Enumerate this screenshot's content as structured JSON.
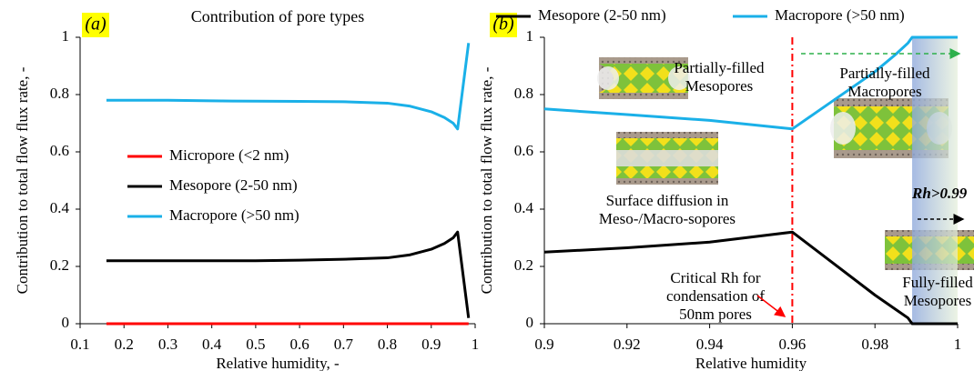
{
  "chart_data": [
    {
      "type": "line",
      "panel_label": "(a)",
      "title": "Contribution of pore types",
      "xlabel": "Relative humidity, -",
      "ylabel": "Contribution to total flow flux rate, -",
      "x": [
        0.16,
        0.2,
        0.3,
        0.4,
        0.5,
        0.6,
        0.7,
        0.8,
        0.85,
        0.9,
        0.93,
        0.95,
        0.96,
        0.985
      ],
      "series": [
        {
          "name": "Micropore (<2 nm)",
          "color": "#ff0000",
          "values": [
            0,
            0,
            0,
            0,
            0,
            0,
            0,
            0,
            0,
            0,
            0,
            0,
            0,
            0
          ]
        },
        {
          "name": "Mesopore (2-50 nm)",
          "color": "#000000",
          "values": [
            0.22,
            0.22,
            0.22,
            0.22,
            0.22,
            0.222,
            0.225,
            0.23,
            0.24,
            0.26,
            0.28,
            0.3,
            0.32,
            0.02
          ]
        },
        {
          "name": "Macropore (>50 nm)",
          "color": "#1ab0e8",
          "values": [
            0.78,
            0.78,
            0.78,
            0.778,
            0.777,
            0.776,
            0.775,
            0.77,
            0.76,
            0.74,
            0.72,
            0.7,
            0.68,
            0.98
          ]
        }
      ],
      "xlim": [
        0.1,
        1
      ],
      "ylim": [
        0,
        1
      ],
      "xticks": [
        0.1,
        0.2,
        0.3,
        0.4,
        0.5,
        0.6,
        0.7,
        0.8,
        0.9,
        1
      ],
      "yticks": [
        0,
        0.2,
        0.4,
        0.6,
        0.8,
        1
      ],
      "legend": "center-left"
    },
    {
      "type": "line",
      "panel_label": "(b)",
      "xlabel": "Relative humidity",
      "ylabel": "Contribution to total flow flux rate, -",
      "x": [
        0.9,
        0.92,
        0.94,
        0.96,
        0.97,
        0.98,
        0.985,
        0.988,
        0.989,
        0.992,
        0.994,
        0.996,
        0.998,
        1
      ],
      "series": [
        {
          "name": "Mesopore (2-50 nm)",
          "color": "#000000",
          "values": [
            0.25,
            0.265,
            0.285,
            0.32,
            0.21,
            0.1,
            0.05,
            0.02,
            0,
            0,
            0,
            0,
            0,
            0
          ]
        },
        {
          "name": "Macropore (>50 nm)",
          "color": "#1ab0e8",
          "values": [
            0.75,
            0.73,
            0.71,
            0.68,
            0.78,
            0.88,
            0.94,
            0.98,
            1,
            1,
            1,
            1,
            1,
            1
          ]
        }
      ],
      "xlim": [
        0.9,
        1
      ],
      "ylim": [
        0,
        1
      ],
      "xticks": [
        0.9,
        0.92,
        0.94,
        0.96,
        0.98,
        1
      ],
      "yticks": [
        0,
        0.2,
        0.4,
        0.6,
        0.8,
        1
      ],
      "legend": "top",
      "vline": 0.96,
      "shade": [
        0.989,
        1
      ],
      "annotations": [
        {
          "lines": [
            "Partially-filled",
            "Mesopores"
          ],
          "color": "#000000"
        },
        {
          "lines": [
            "Partially-filled",
            "Macropores"
          ],
          "color": "#2db04b"
        },
        {
          "lines": [
            "Surface diffusion in",
            "Meso-/Macro-sopores"
          ],
          "color": "#000000"
        },
        {
          "lines": [
            "Critical Rh for",
            "condensation of",
            "50nm pores"
          ],
          "color": "#000000"
        },
        {
          "lines": [
            "Rh>0.99"
          ],
          "color": "#000000"
        },
        {
          "lines": [
            "Fully-filled",
            "Mesopores"
          ],
          "color": "#000000"
        }
      ]
    }
  ]
}
